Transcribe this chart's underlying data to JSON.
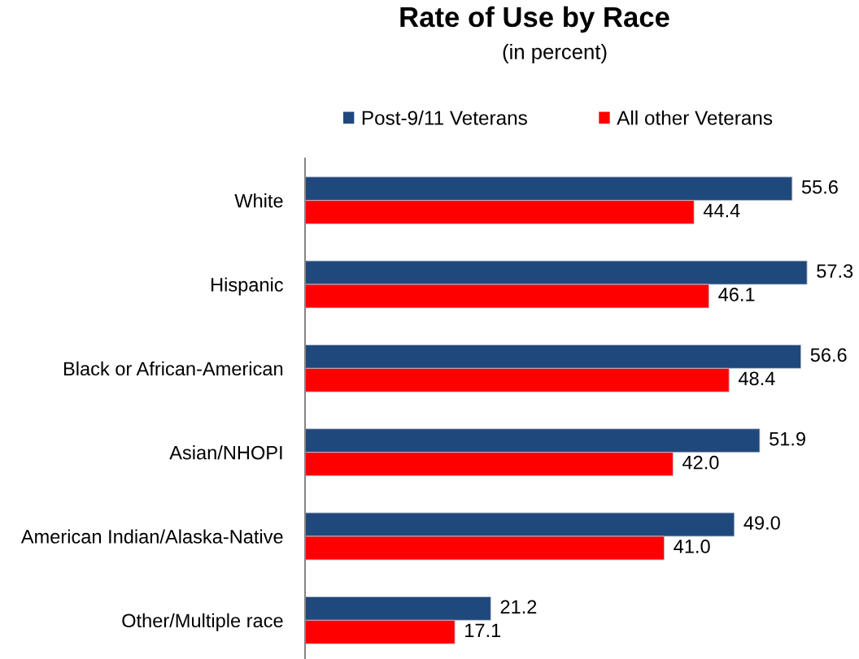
{
  "chart_data": {
    "type": "bar",
    "orientation": "horizontal",
    "title": "Rate of Use by Race",
    "subtitle": "(in percent)",
    "categories": [
      "White",
      "Hispanic",
      "Black or African-American",
      "Asian/NHOPI",
      "American Indian/Alaska-Native",
      "Other/Multiple race"
    ],
    "series": [
      {
        "name": "Post-9/11 Veterans",
        "color": "#1f497d",
        "values": [
          55.6,
          57.3,
          56.6,
          51.9,
          49.0,
          21.2
        ],
        "value_labels": [
          "55.6",
          "57.3",
          "56.6",
          "51.9",
          "49.0",
          "21.2"
        ]
      },
      {
        "name": "All other Veterans",
        "color": "#ff0000",
        "values": [
          44.4,
          46.1,
          48.4,
          42.0,
          41.0,
          17.1
        ],
        "value_labels": [
          "44.4",
          "46.1",
          "48.4",
          "42.0",
          "41.0",
          "17.1"
        ]
      }
    ],
    "legend": "top",
    "grid": false,
    "tick_labels": "y"
  }
}
